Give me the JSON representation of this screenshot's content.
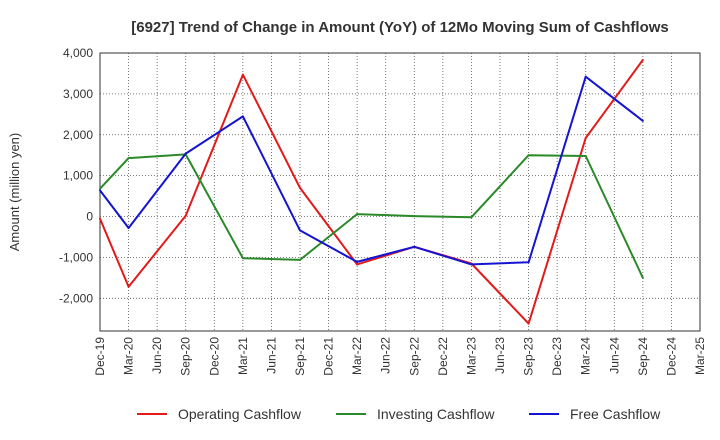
{
  "chart_data": {
    "type": "line",
    "title": "[6927]  Trend of Change in Amount (YoY) of 12Mo Moving Sum of Cashflows",
    "xlabel": "",
    "ylabel": "Amount (million yen)",
    "ylim": [
      -2800,
      4000
    ],
    "yticks": [
      -2000,
      -1000,
      0,
      1000,
      2000,
      3000,
      4000
    ],
    "ytick_labels": [
      "-2,000",
      "-1,000",
      "0",
      "1,000",
      "2,000",
      "3,000",
      "4,000"
    ],
    "categories": [
      "Dec-19",
      "Mar-20",
      "Jun-20",
      "Sep-20",
      "Dec-20",
      "Mar-21",
      "Jun-21",
      "Sep-21",
      "Dec-21",
      "Mar-22",
      "Jun-22",
      "Sep-22",
      "Dec-22",
      "Mar-23",
      "Jun-23",
      "Sep-23",
      "Dec-23",
      "Mar-24",
      "Jun-24",
      "Sep-24",
      "Dec-24",
      "Mar-25"
    ],
    "grid": true,
    "legend_position": "bottom",
    "series": [
      {
        "name": "Operating Cashflow",
        "color": "#e31a1a",
        "values": [
          -50,
          -1720,
          null,
          20,
          null,
          3470,
          null,
          700,
          null,
          -1170,
          null,
          -740,
          null,
          -1150,
          null,
          -2620,
          null,
          1920,
          null,
          3830,
          null,
          null
        ]
      },
      {
        "name": "Investing Cashflow",
        "color": "#2a8a2a",
        "values": [
          680,
          1430,
          null,
          1520,
          null,
          -1020,
          null,
          -1060,
          null,
          60,
          null,
          10,
          null,
          -20,
          null,
          1500,
          null,
          1480,
          null,
          -1500,
          null,
          null
        ]
      },
      {
        "name": "Free Cashflow",
        "color": "#1414d2",
        "values": [
          640,
          -280,
          null,
          1540,
          null,
          2450,
          null,
          -340,
          null,
          -1110,
          null,
          -740,
          null,
          -1170,
          null,
          -1120,
          null,
          3420,
          null,
          2340,
          null,
          null
        ]
      }
    ]
  }
}
